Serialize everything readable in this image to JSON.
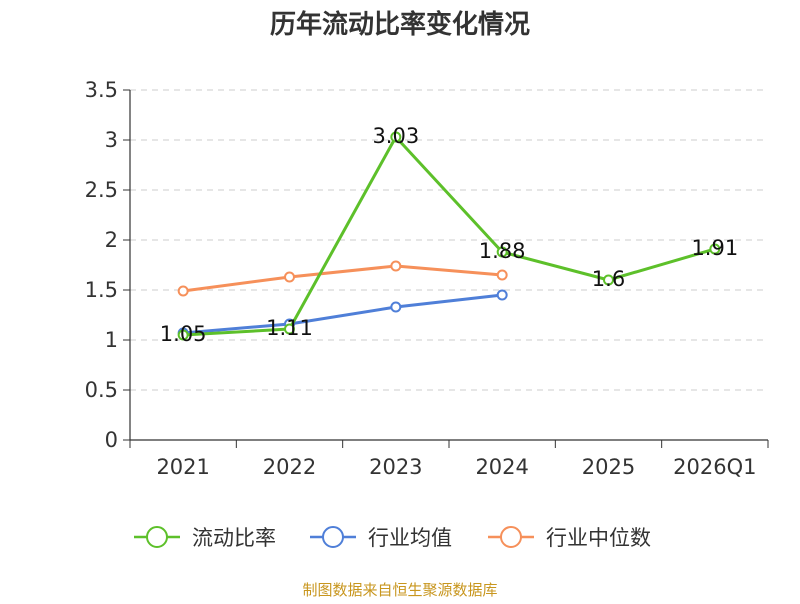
{
  "chart_data": {
    "type": "line",
    "title": "历年流动比率变化情况",
    "categories": [
      "2021",
      "2022",
      "2023",
      "2024",
      "2025",
      "2026Q1"
    ],
    "ylim": [
      0,
      3.5
    ],
    "yticks": [
      "0",
      "0.5",
      "1",
      "1.5",
      "2",
      "2.5",
      "3",
      "3.5"
    ],
    "grid": true,
    "legend_position": "bottom",
    "series": [
      {
        "name": "流动比率",
        "color": "#5dc02a",
        "values": [
          1.05,
          1.11,
          3.03,
          1.88,
          1.6,
          1.91
        ],
        "labels": [
          "1.05",
          "1.11",
          "3.03",
          "1.88",
          "1.6",
          "1.91"
        ]
      },
      {
        "name": "行业均值",
        "color": "#4f7fd8",
        "values": [
          1.07,
          1.16,
          1.33,
          1.45,
          null,
          null
        ]
      },
      {
        "name": "行业中位数",
        "color": "#f6905a",
        "values": [
          1.49,
          1.63,
          1.74,
          1.65,
          null,
          null
        ]
      }
    ]
  },
  "source_text": "制图数据来自恒生聚源数据库"
}
